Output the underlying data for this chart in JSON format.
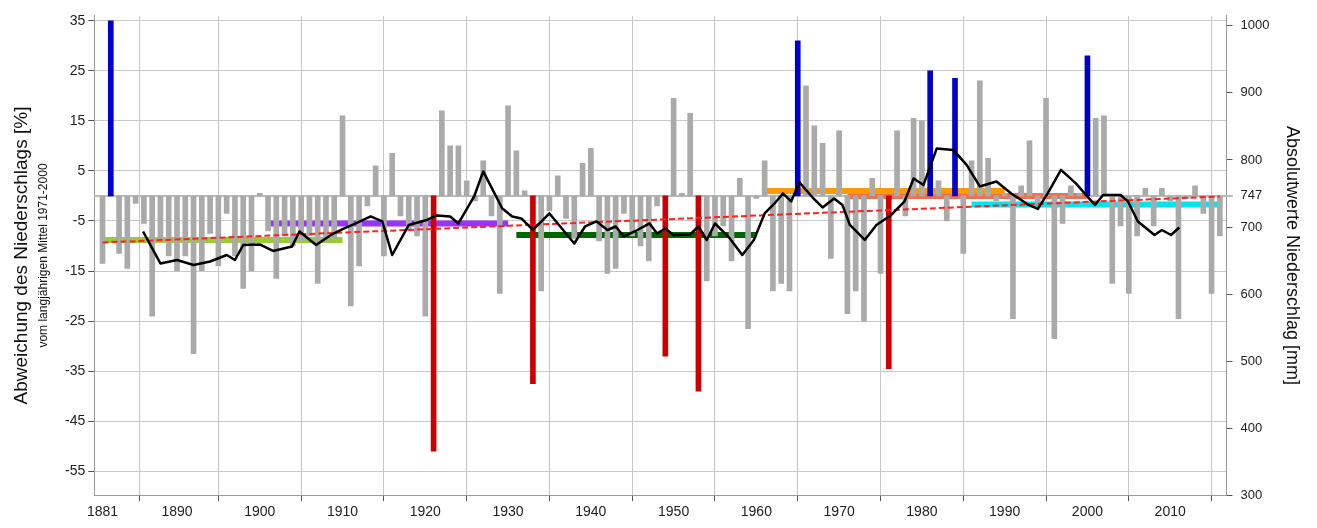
{
  "chart_data": {
    "type": "bar",
    "ylabel": "Abweichung des Niederschlags [%]",
    "y2label": "Absolutwerte Niederschlag [mm]",
    "annotations": [
      "vom langjährigen Mittel 1971-2000"
    ],
    "x": [
      1881,
      1882,
      1883,
      1884,
      1885,
      1886,
      1887,
      1888,
      1889,
      1890,
      1891,
      1892,
      1893,
      1894,
      1895,
      1896,
      1897,
      1898,
      1899,
      1900,
      1901,
      1902,
      1903,
      1904,
      1905,
      1906,
      1907,
      1908,
      1909,
      1910,
      1911,
      1912,
      1913,
      1914,
      1915,
      1916,
      1917,
      1918,
      1919,
      1920,
      1921,
      1922,
      1923,
      1924,
      1925,
      1926,
      1927,
      1928,
      1929,
      1930,
      1931,
      1932,
      1933,
      1934,
      1935,
      1936,
      1937,
      1938,
      1939,
      1940,
      1941,
      1942,
      1943,
      1944,
      1945,
      1946,
      1947,
      1948,
      1949,
      1950,
      1951,
      1952,
      1953,
      1954,
      1955,
      1956,
      1957,
      1958,
      1959,
      1960,
      1961,
      1962,
      1963,
      1964,
      1965,
      1966,
      1967,
      1968,
      1969,
      1970,
      1971,
      1972,
      1973,
      1974,
      1975,
      1976,
      1977,
      1978,
      1979,
      1980,
      1981,
      1982,
      1983,
      1984,
      1985,
      1986,
      1987,
      1988,
      1989,
      1990,
      1991,
      1992,
      1993,
      1994,
      1995,
      1996,
      1997,
      1998,
      1999,
      2000,
      2001,
      2002,
      2003,
      2004,
      2005,
      2006,
      2007,
      2008,
      2009,
      2010,
      2011,
      2012,
      2013,
      2014,
      2015,
      2016
    ],
    "series": [
      {
        "color": "#aaaaaa",
        "values": [
          -13.5,
          null,
          -11.5,
          -14.5,
          -1.5,
          -5.5,
          -24,
          -9,
          -12,
          -15,
          -12,
          -31.5,
          -15,
          -7.5,
          -14,
          -3.5,
          -12,
          -18.5,
          -15,
          0.5,
          -7,
          -16.5,
          -8,
          -10,
          -9,
          -8,
          -17.5,
          -9,
          -8.5,
          16,
          -22,
          -14,
          -2,
          6,
          -12,
          8.5,
          -4,
          -7,
          -8,
          -24,
          null,
          17,
          10,
          10,
          3,
          -1,
          7,
          -4,
          -19.5,
          18,
          9,
          1,
          null,
          -19,
          -3,
          4,
          -4.5,
          -8.5,
          6.5,
          9.5,
          -9,
          -15.5,
          -14.5,
          -3.5,
          -8,
          -10,
          -13,
          -2,
          null,
          19.5,
          0.5,
          16.5,
          null,
          -17,
          -8,
          -6,
          -13,
          3.5,
          -26.5,
          -0.5,
          7,
          -19,
          -17.5,
          -19,
          null,
          22,
          14,
          10.5,
          -12.5,
          13,
          -23.5,
          -19,
          -25,
          3.5,
          -15.5,
          null,
          13,
          -4,
          15.5,
          15,
          null,
          3,
          -5,
          null,
          -11.5,
          7,
          23,
          7.5,
          -1,
          0.5,
          -24.5,
          2,
          11,
          -1.5,
          19.5,
          -28.5,
          -5.5,
          2,
          0.5,
          null,
          15.5,
          16,
          -17.5,
          -6,
          -19.5,
          -8,
          1.5,
          -6,
          1.5,
          -1,
          -24.5,
          -0.5,
          2,
          -3.5,
          -19.5,
          -8
        ]
      },
      {
        "color": "#0000cc",
        "x": [
          1882,
          1965,
          1981,
          1984,
          2000
        ],
        "values": [
          35,
          31,
          25,
          23.5,
          28
        ]
      },
      {
        "color": "#cc0000",
        "x": [
          1921,
          1933,
          1949,
          1953,
          1976
        ],
        "values": [
          -51,
          -37.5,
          -32,
          -39,
          -34.5
        ]
      },
      {
        "type": "line",
        "color": "#99cc33",
        "x": [
          1881,
          1910
        ],
        "values": [
          -8.8,
          -8.8
        ]
      },
      {
        "type": "line",
        "color": "#9933ff",
        "x": [
          1901,
          1930
        ],
        "values": [
          -5.5,
          -5.5
        ]
      },
      {
        "type": "line",
        "color": "#006600",
        "x": [
          1931,
          1960
        ],
        "values": [
          -7.8,
          -7.8
        ]
      },
      {
        "type": "line",
        "color": "#ff9900",
        "x": [
          1961,
          1990
        ],
        "values": [
          1,
          1
        ]
      },
      {
        "type": "line",
        "color": "#f07050",
        "x": [
          1971,
          2000
        ],
        "values": [
          0,
          0
        ]
      },
      {
        "type": "line",
        "color": "#00e5ee",
        "x": [
          1986,
          2016
        ],
        "values": [
          -1.7,
          -1.7
        ]
      },
      {
        "type": "line",
        "color": "#ff2020",
        "line_style": "dashed",
        "x": [
          1881,
          2016
        ],
        "values": [
          -9.3,
          -0.1
        ]
      },
      {
        "type": "line",
        "color": "#000000",
        "x": [
          1885.9,
          1888,
          1890,
          1892,
          1894,
          1896,
          1897,
          1898,
          1900,
          1901.6,
          1903.9,
          1904.8,
          1906.8,
          1908.6,
          1910.2,
          1911.6,
          1913.4,
          1914.8,
          1916,
          1918,
          1920.2,
          1921.4,
          1923,
          1924,
          1925.9,
          1927,
          1929.3,
          1930.5,
          1931.6,
          1933,
          1935,
          1938,
          1939.3,
          1940.7,
          1942,
          1943,
          1944,
          1945.3,
          1947.1,
          1948,
          1949,
          1950,
          1952,
          1953,
          1954,
          1955,
          1956.8,
          1958.3,
          1959.7,
          1961,
          1962.2,
          1963.2,
          1964.2,
          1965.2,
          1966.9,
          1968,
          1969.4,
          1970.4,
          1971.3,
          1973.1,
          1974.5,
          1976.3,
          1977.9,
          1979,
          1980.2,
          1981.8,
          1983.8,
          1985.4,
          1987,
          1989,
          1990.8,
          1992.9,
          1994,
          1995.2,
          1996.8,
          1998.6,
          2000.9,
          2001.9,
          2004,
          2004.9,
          2006.1,
          2008.1,
          2009,
          2010.1,
          2011.1
        ],
        "values": [
          -7.1,
          -13.5,
          -12.8,
          -13.8,
          -13.1,
          -11.8,
          -12.8,
          -9.8,
          -9.7,
          -11,
          -10.1,
          -7.1,
          -9.8,
          -7.8,
          -6.5,
          -5.5,
          -4.1,
          -5.1,
          -11.8,
          -5.8,
          -4.8,
          -3.9,
          -4.1,
          -5.5,
          -0.1,
          4.9,
          -2.5,
          -4.1,
          -4.5,
          -6.8,
          -3.5,
          -9.5,
          -6.1,
          -5.1,
          -6.8,
          -6.1,
          -8.1,
          -7.1,
          -5.5,
          -7.5,
          -6.5,
          -7.8,
          -7.7,
          -6.1,
          -8.8,
          -5.5,
          -8.5,
          -11.8,
          -8.8,
          -3.5,
          -1.5,
          0.5,
          -1.1,
          2.7,
          -0.5,
          -2.3,
          -0.5,
          -1.8,
          -5.8,
          -8.8,
          -5.8,
          -3.8,
          -1.1,
          3.5,
          2.2,
          9.5,
          9.2,
          6.2,
          1.9,
          2.9,
          0.5,
          -1.8,
          -2.6,
          0.5,
          5.2,
          2.5,
          -1.8,
          0.2,
          0.2,
          -1.1,
          -5.1,
          -7.8,
          -6.8,
          -7.8,
          -6.3
        ]
      }
    ],
    "xlim": [
      1880,
      2016.8
    ],
    "xticks": [
      1881,
      1890,
      1900,
      1910,
      1920,
      1930,
      1940,
      1950,
      1960,
      1970,
      1980,
      1990,
      2000,
      2010
    ],
    "ylim": [
      -59.8,
      36
    ],
    "yticks": [
      35,
      25,
      15,
      5,
      -5,
      -15,
      -25,
      -35,
      -45,
      -55
    ],
    "y2lim": [
      300,
      1015
    ],
    "y2ticks": [
      300,
      400,
      500,
      600,
      700,
      747,
      800,
      900,
      1000
    ],
    "ref_lines": [
      {
        "axis": "y",
        "value": 0,
        "color": "#bbbbbb"
      }
    ],
    "grid": true,
    "legend": false,
    "marker": "none"
  }
}
